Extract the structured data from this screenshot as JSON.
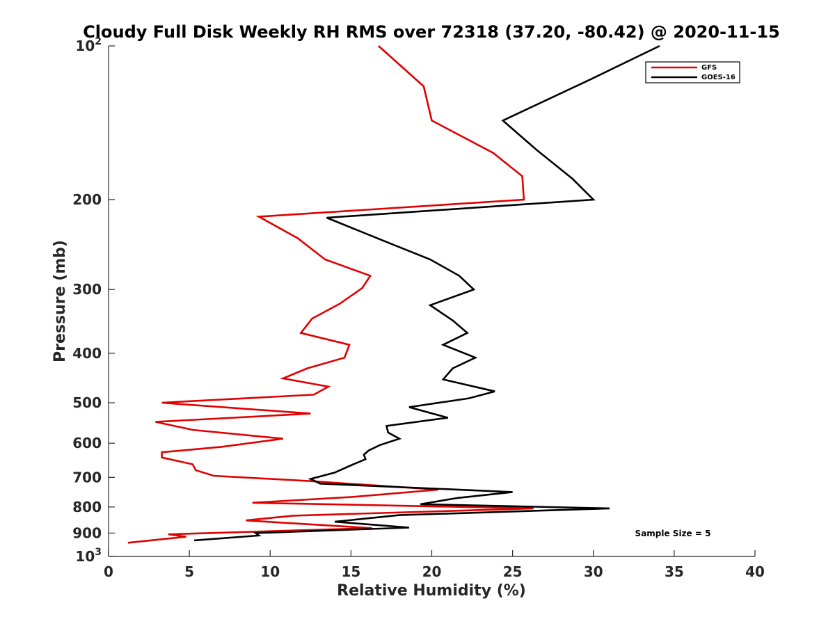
{
  "chart_data": {
    "type": "line",
    "title": "Cloudy Full Disk Weekly RH RMS over 72318 (37.20, -80.42) @ 2020-11-15",
    "xlabel": "Relative Humidity (%)",
    "ylabel": "Pressure (mb)",
    "xlim": [
      0,
      40
    ],
    "ylim": [
      100,
      1000
    ],
    "yscale": "log",
    "y_inverted": true,
    "x_ticks": [
      0,
      5,
      10,
      15,
      20,
      25,
      30,
      35,
      40
    ],
    "x_tick_labels": [
      "0",
      "5",
      "10",
      "15",
      "20",
      "25",
      "30",
      "35",
      "40"
    ],
    "y_ticks": [
      100,
      200,
      300,
      400,
      500,
      600,
      700,
      800,
      900,
      1000
    ],
    "y_tick_labels": [
      {
        "base": "10",
        "exp": "2"
      },
      {
        "base": "200",
        "exp": ""
      },
      {
        "base": "300",
        "exp": ""
      },
      {
        "base": "400",
        "exp": ""
      },
      {
        "base": "500",
        "exp": ""
      },
      {
        "base": "600",
        "exp": ""
      },
      {
        "base": "700",
        "exp": ""
      },
      {
        "base": "800",
        "exp": ""
      },
      {
        "base": "900",
        "exp": ""
      },
      {
        "base": "10",
        "exp": "3"
      }
    ],
    "legend_position": "top-right",
    "annotation": "Sample Size = 5",
    "series": [
      {
        "name": "GFS",
        "color": "#e00000",
        "points": [
          [
            16.7,
            100
          ],
          [
            19.5,
            120
          ],
          [
            20.0,
            140
          ],
          [
            23.8,
            162
          ],
          [
            25.6,
            180
          ],
          [
            25.7,
            200
          ],
          [
            9.3,
            216
          ],
          [
            11.7,
            238
          ],
          [
            13.4,
            262
          ],
          [
            16.2,
            282
          ],
          [
            15.7,
            298
          ],
          [
            14.3,
            320
          ],
          [
            12.6,
            342
          ],
          [
            11.9,
            365
          ],
          [
            14.9,
            385
          ],
          [
            14.6,
            408
          ],
          [
            12.3,
            428
          ],
          [
            10.8,
            448
          ],
          [
            13.6,
            465
          ],
          [
            12.7,
            482
          ],
          [
            3.3,
            500
          ],
          [
            12.5,
            525
          ],
          [
            2.9,
            545
          ],
          [
            5.2,
            565
          ],
          [
            10.8,
            588
          ],
          [
            7.0,
            610
          ],
          [
            3.3,
            625
          ],
          [
            3.3,
            640
          ],
          [
            5.2,
            660
          ],
          [
            5.4,
            678
          ],
          [
            6.5,
            695
          ],
          [
            12.5,
            712
          ],
          [
            20.4,
            740
          ],
          [
            15.0,
            765
          ],
          [
            8.9,
            785
          ],
          [
            26.3,
            805
          ],
          [
            11.4,
            832
          ],
          [
            8.5,
            850
          ],
          [
            16.3,
            880
          ],
          [
            3.7,
            905
          ],
          [
            4.8,
            915
          ],
          [
            1.2,
            940
          ]
        ]
      },
      {
        "name": "GOES-16",
        "color": "#000000",
        "points": [
          [
            34.1,
            100
          ],
          [
            29.9,
            116
          ],
          [
            24.4,
            140
          ],
          [
            26.5,
            160
          ],
          [
            28.7,
            182
          ],
          [
            30.0,
            200
          ],
          [
            13.5,
            217
          ],
          [
            16.9,
            240
          ],
          [
            19.9,
            262
          ],
          [
            21.7,
            282
          ],
          [
            22.6,
            300
          ],
          [
            19.9,
            322
          ],
          [
            21.3,
            345
          ],
          [
            22.2,
            365
          ],
          [
            20.7,
            385
          ],
          [
            22.7,
            408
          ],
          [
            21.3,
            428
          ],
          [
            20.7,
            450
          ],
          [
            23.9,
            475
          ],
          [
            22.3,
            490
          ],
          [
            18.6,
            510
          ],
          [
            21.0,
            535
          ],
          [
            17.2,
            555
          ],
          [
            17.3,
            572
          ],
          [
            18.0,
            588
          ],
          [
            16.8,
            605
          ],
          [
            16.1,
            620
          ],
          [
            15.8,
            632
          ],
          [
            15.9,
            645
          ],
          [
            14.9,
            665
          ],
          [
            14.0,
            685
          ],
          [
            12.5,
            705
          ],
          [
            13.1,
            720
          ],
          [
            25.0,
            748
          ],
          [
            21.6,
            768
          ],
          [
            19.3,
            790
          ],
          [
            31.0,
            805
          ],
          [
            18.0,
            830
          ],
          [
            14.0,
            855
          ],
          [
            18.6,
            878
          ],
          [
            9.1,
            900
          ],
          [
            9.3,
            910
          ],
          [
            5.3,
            930
          ]
        ]
      }
    ]
  }
}
